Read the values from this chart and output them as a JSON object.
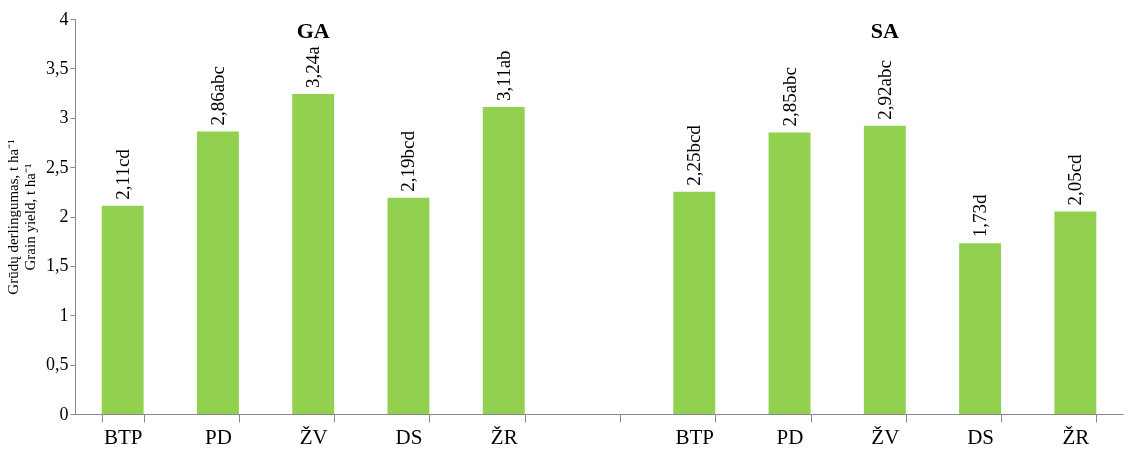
{
  "chart_data": {
    "type": "bar",
    "categories": [
      "BTP",
      "PD",
      "ŽV",
      "DS",
      "ŽR",
      null,
      "BTP",
      "PD",
      "ŽV",
      "DS",
      "ŽR"
    ],
    "values": [
      2.11,
      2.86,
      3.24,
      2.19,
      3.11,
      null,
      2.25,
      2.85,
      2.92,
      1.73,
      2.05
    ],
    "value_labels": [
      "2,11cd",
      "2,86abc",
      "3,24a",
      "2,19bcd",
      "3,11ab",
      null,
      "2,25bcd",
      "2,85abc",
      "2,92abc",
      "1,73d",
      "2,05cd"
    ],
    "color": "#92d050",
    "ylabel": "Grūdų derlingumas, t ha⁻¹\nGrain yield, t ha⁻¹",
    "ylim": [
      0,
      4
    ],
    "yticks": [
      0,
      {
        "value": 0.5,
        "label": "0,5"
      },
      1,
      {
        "value": 1.5,
        "label": "1,5"
      },
      2,
      {
        "value": 2.5,
        "label": "2,5"
      },
      3,
      {
        "value": 3.5,
        "label": "3,5"
      },
      4
    ],
    "annotations": [
      "GA",
      "SA"
    ],
    "grid": false
  }
}
